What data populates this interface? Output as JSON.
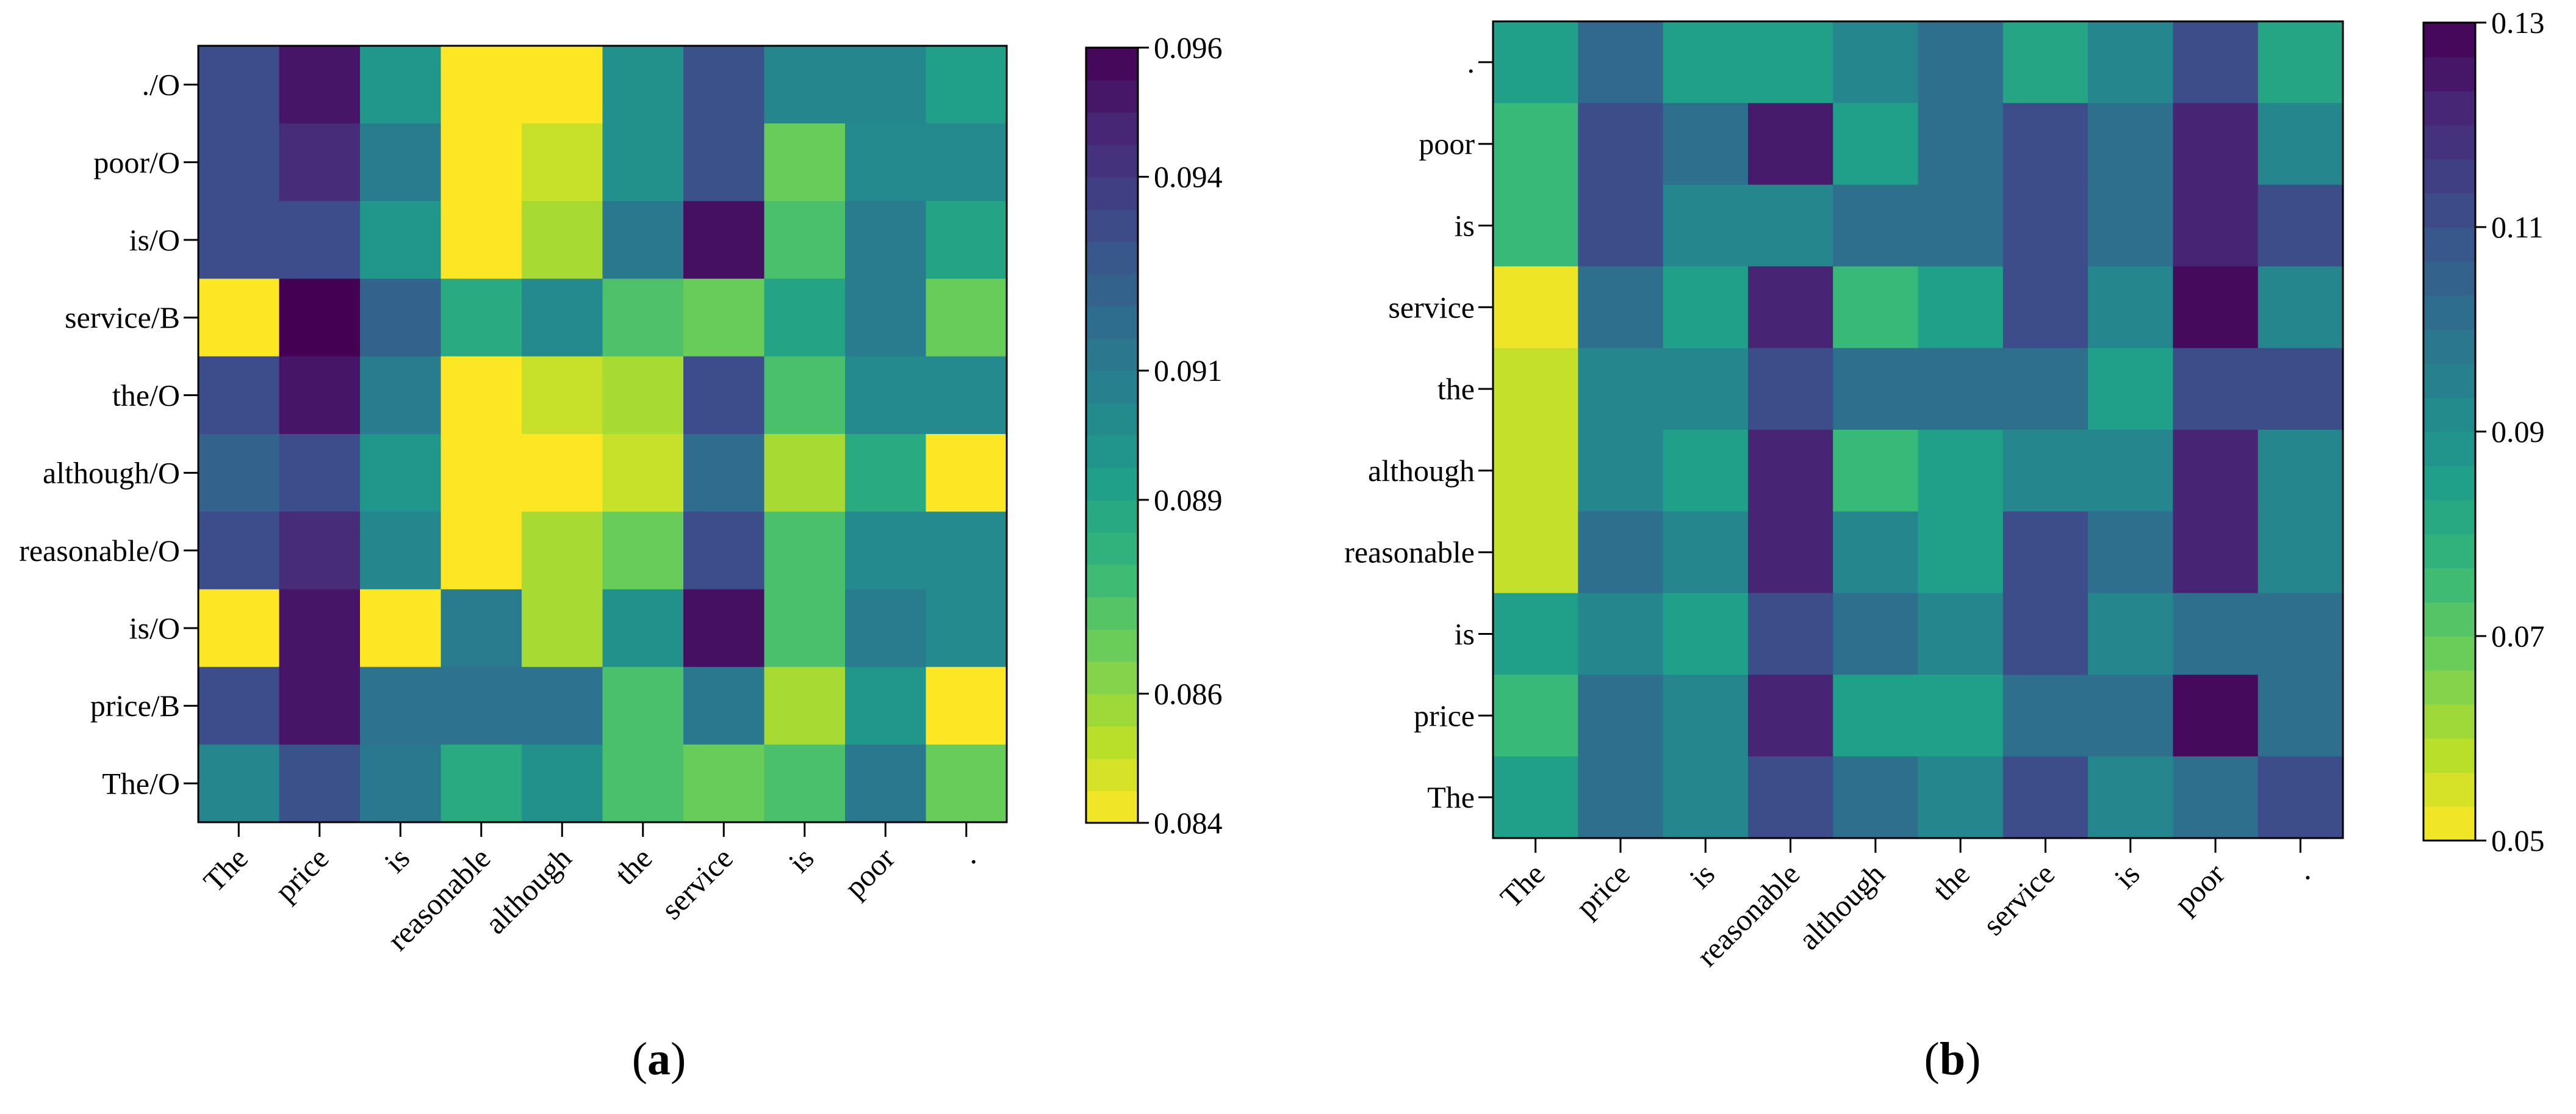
{
  "chart_data": [
    {
      "type": "heatmap",
      "panel_label": "(a)",
      "panel_letter": "a",
      "row_labels": [
        "./O",
        "poor/O",
        "is/O",
        "service/B",
        "the/O",
        "although/O",
        "reasonable/O",
        "is/O",
        "price/B",
        "The/O"
      ],
      "col_labels": [
        "The",
        "price",
        "is",
        "reasonable",
        "although",
        "the",
        "service",
        "is",
        "poor",
        "."
      ],
      "values": [
        [
          0.0932,
          0.0953,
          0.0897,
          0.084,
          0.084,
          0.09,
          0.093,
          0.0905,
          0.0905,
          0.0893
        ],
        [
          0.0932,
          0.0945,
          0.091,
          0.084,
          0.085,
          0.09,
          0.093,
          0.0868,
          0.0903,
          0.0903
        ],
        [
          0.0932,
          0.0932,
          0.0897,
          0.084,
          0.0856,
          0.0912,
          0.0955,
          0.0875,
          0.091,
          0.089
        ],
        [
          0.084,
          0.096,
          0.0922,
          0.0887,
          0.0903,
          0.0874,
          0.0868,
          0.089,
          0.091,
          0.0868
        ],
        [
          0.0932,
          0.0953,
          0.091,
          0.084,
          0.085,
          0.0856,
          0.0932,
          0.0875,
          0.0903,
          0.0903
        ],
        [
          0.0922,
          0.0932,
          0.0897,
          0.084,
          0.084,
          0.085,
          0.0918,
          0.0856,
          0.0887,
          0.084
        ],
        [
          0.0932,
          0.0945,
          0.0905,
          0.084,
          0.0856,
          0.0868,
          0.0932,
          0.0875,
          0.0903,
          0.0903
        ],
        [
          0.084,
          0.0953,
          0.084,
          0.091,
          0.0856,
          0.09,
          0.0955,
          0.0875,
          0.091,
          0.0903
        ],
        [
          0.0932,
          0.0953,
          0.0915,
          0.0915,
          0.0915,
          0.0875,
          0.0912,
          0.0856,
          0.0897,
          0.084
        ],
        [
          0.0905,
          0.093,
          0.0912,
          0.0887,
          0.09,
          0.0875,
          0.0868,
          0.0875,
          0.0912,
          0.0868
        ]
      ],
      "colorbar": {
        "min": 0.084,
        "max": 0.096,
        "ticks": [
          0.084,
          0.086,
          0.089,
          0.091,
          0.094,
          0.096
        ],
        "tick_labels": [
          "0.084",
          "0.086",
          "0.089",
          "0.091",
          "0.094",
          "0.096"
        ]
      }
    },
    {
      "type": "heatmap",
      "panel_label": "(b)",
      "panel_letter": "b",
      "row_labels": [
        ".",
        "poor",
        "is",
        "service",
        "the",
        "although",
        "reasonable",
        "is",
        "price",
        "The"
      ],
      "col_labels": [
        "The",
        "price",
        "is",
        "reasonable",
        "although",
        "the",
        "service",
        "is",
        "poor",
        "."
      ],
      "values": [
        [
          0.085,
          0.103,
          0.085,
          0.085,
          0.093,
          0.101,
          0.083,
          0.093,
          0.111,
          0.083
        ],
        [
          0.076,
          0.111,
          0.101,
          0.124,
          0.085,
          0.101,
          0.111,
          0.101,
          0.122,
          0.093
        ],
        [
          0.076,
          0.111,
          0.093,
          0.093,
          0.101,
          0.101,
          0.111,
          0.101,
          0.122,
          0.111
        ],
        [
          0.052,
          0.101,
          0.085,
          0.122,
          0.076,
          0.085,
          0.111,
          0.093,
          0.128,
          0.093
        ],
        [
          0.057,
          0.093,
          0.093,
          0.111,
          0.101,
          0.101,
          0.101,
          0.085,
          0.111,
          0.111
        ],
        [
          0.057,
          0.093,
          0.085,
          0.122,
          0.076,
          0.085,
          0.093,
          0.093,
          0.122,
          0.093
        ],
        [
          0.057,
          0.101,
          0.093,
          0.122,
          0.093,
          0.085,
          0.111,
          0.101,
          0.122,
          0.093
        ],
        [
          0.085,
          0.093,
          0.085,
          0.111,
          0.101,
          0.093,
          0.111,
          0.093,
          0.101,
          0.101
        ],
        [
          0.076,
          0.101,
          0.093,
          0.122,
          0.085,
          0.085,
          0.101,
          0.101,
          0.128,
          0.101
        ],
        [
          0.085,
          0.101,
          0.093,
          0.111,
          0.101,
          0.093,
          0.111,
          0.093,
          0.101,
          0.111
        ]
      ],
      "colorbar": {
        "min": 0.05,
        "max": 0.13,
        "ticks": [
          0.05,
          0.07,
          0.09,
          0.11,
          0.13
        ],
        "tick_labels": [
          "0.05",
          "0.07",
          "0.09",
          "0.11",
          "0.13"
        ]
      }
    }
  ],
  "colormap": {
    "name": "viridis",
    "stops": [
      "#fde725",
      "#b5de2b",
      "#6ece58",
      "#35b779",
      "#1f9e89",
      "#26828e",
      "#31688e",
      "#3e4989",
      "#482878",
      "#440154"
    ]
  }
}
